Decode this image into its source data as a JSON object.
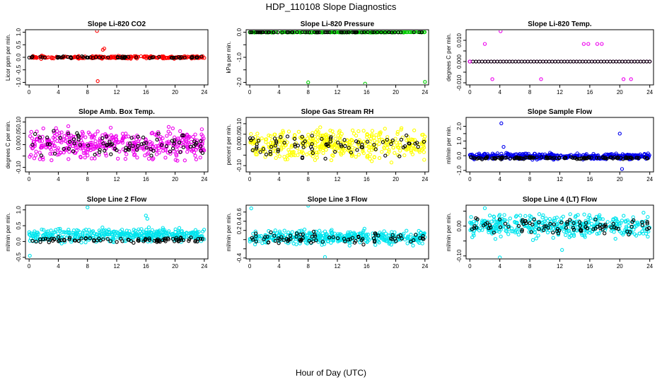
{
  "figure": {
    "title": "HDP_110108  Slope Diagnostics",
    "xlabel": "Hour of Day (UTC)"
  },
  "chart_data": [
    {
      "type": "scatter",
      "id": "co2",
      "title": "Slope Li-820 CO2",
      "ylabel": "Licor ppm per min.",
      "ylim": [
        -1.1,
        1.1
      ],
      "yticks": [
        -1.0,
        -0.5,
        0.0,
        0.5,
        1.0
      ],
      "ytick_labels": [
        "-1.0",
        "-0.5",
        "0.0",
        "0.5",
        "1.0"
      ],
      "xlim": [
        -0.5,
        24.5
      ],
      "xticks": [
        0,
        4,
        8,
        12,
        16,
        20,
        24
      ],
      "xtick_labels": [
        "0",
        "4",
        "8",
        "12",
        "16",
        "20",
        "24"
      ],
      "bulk_color": "#ff0000",
      "ref_color": "#000000",
      "series": [
        {
          "name": "all",
          "color": "#ff0000",
          "kind": "noise",
          "n": 240,
          "center": 0.0,
          "spread": 0.04,
          "seed": 11
        },
        {
          "name": "reference",
          "color": "#000000",
          "kind": "noise",
          "n": 60,
          "center": 0.0,
          "spread": 0.03,
          "seed": 12
        },
        {
          "name": "outliers",
          "color": "#ff0000",
          "kind": "points",
          "x": [
            9.3,
            9.4,
            10.1,
            10.3
          ],
          "y": [
            1.05,
            -0.95,
            0.3,
            0.35
          ]
        }
      ]
    },
    {
      "type": "scatter",
      "id": "pressure",
      "title": "Slope Li-820 Pressure",
      "ylabel": "kPa per min.",
      "ylim": [
        -2.1,
        0.1
      ],
      "yticks": [
        -2.0,
        -1.5,
        -1.0,
        -0.5,
        0.0
      ],
      "ytick_labels": [
        "-2.0",
        "",
        "-1.0",
        "",
        "0.0"
      ],
      "xlim": [
        -0.5,
        24.5
      ],
      "xticks": [
        0,
        4,
        8,
        12,
        16,
        20,
        24
      ],
      "xtick_labels": [
        "0",
        "4",
        "8",
        "12",
        "16",
        "20",
        "24"
      ],
      "bulk_color": "#00cc00",
      "ref_color": "#000000",
      "series": [
        {
          "name": "all",
          "color": "#00cc00",
          "kind": "noise",
          "n": 200,
          "center": 0.0,
          "spread": 0.01,
          "seed": 21
        },
        {
          "name": "reference",
          "color": "#000000",
          "kind": "noise",
          "n": 70,
          "center": 0.0,
          "spread": 0.005,
          "seed": 22
        },
        {
          "name": "outliers",
          "color": "#00cc00",
          "kind": "points",
          "x": [
            8.0,
            15.8,
            24.0
          ],
          "y": [
            -2.0,
            -2.05,
            -1.98
          ]
        }
      ]
    },
    {
      "type": "scatter",
      "id": "temp",
      "title": "Slope Li-820 Temp.",
      "ylabel": "degrees C per min.",
      "ylim": [
        -0.011,
        0.015
      ],
      "yticks": [
        -0.01,
        -0.005,
        0.0,
        0.005,
        0.01
      ],
      "ytick_labels": [
        "-0.010",
        "",
        "0.000",
        "",
        "0.010"
      ],
      "xlim": [
        -0.5,
        24.5
      ],
      "xticks": [
        0,
        4,
        8,
        12,
        16,
        20,
        24
      ],
      "xtick_labels": [
        "0",
        "4",
        "8",
        "12",
        "16",
        "20",
        "24"
      ],
      "bulk_color": "#ee00ee",
      "ref_color": "#000000",
      "series": [
        {
          "name": "all",
          "color": "#ee00ee",
          "kind": "line",
          "n": 60,
          "center": 0.0,
          "seed": 31
        },
        {
          "name": "reference",
          "color": "#000000",
          "kind": "line",
          "n": 60,
          "center": 0.0,
          "seed": 32
        },
        {
          "name": "outliers",
          "color": "#ee00ee",
          "kind": "points",
          "x": [
            0.0,
            2.0,
            3.0,
            4.1,
            9.5,
            15.2,
            15.8,
            17.0,
            17.6,
            20.5,
            21.5
          ],
          "y": [
            0.0,
            0.0083,
            -0.0083,
            0.0143,
            -0.0083,
            0.0083,
            0.0083,
            0.0083,
            0.0083,
            -0.0083,
            -0.0083
          ]
        }
      ]
    },
    {
      "type": "scatter",
      "id": "ambtemp",
      "title": "Slope Amb. Box Temp.",
      "ylabel": "degrees C per min.",
      "ylim": [
        -0.12,
        0.12
      ],
      "yticks": [
        -0.1,
        -0.05,
        0.0,
        0.05,
        0.1
      ],
      "ytick_labels": [
        "-0.10",
        "0.00",
        "0.05",
        "0.10"
      ],
      "ytick_labels_at": [
        -0.1,
        0.0,
        0.05,
        0.1
      ],
      "xlim": [
        -0.5,
        24.5
      ],
      "xticks": [
        0,
        4,
        8,
        12,
        16,
        20,
        24
      ],
      "xtick_labels": [
        "0",
        "4",
        "8",
        "12",
        "16",
        "20",
        "24"
      ],
      "bulk_color": "#ee00ee",
      "ref_color": "#000000",
      "series": [
        {
          "name": "all",
          "color": "#ee00ee",
          "kind": "noise",
          "n": 420,
          "center": 0.0,
          "spread": 0.05,
          "seed": 41
        },
        {
          "name": "reference",
          "color": "#000000",
          "kind": "noise",
          "n": 80,
          "center": 0.0,
          "spread": 0.04,
          "seed": 42
        }
      ]
    },
    {
      "type": "scatter",
      "id": "rh",
      "title": "Slope Gas Stream RH",
      "ylabel": "percent per min.",
      "ylim": [
        -0.13,
        0.13
      ],
      "yticks": [
        -0.1,
        -0.05,
        0.0,
        0.05,
        0.1
      ],
      "ytick_labels": [
        "-0.10",
        "0.00",
        "0.05",
        "0.10"
      ],
      "ytick_labels_at": [
        -0.1,
        0.0,
        0.05,
        0.1
      ],
      "xlim": [
        -0.5,
        24.5
      ],
      "xticks": [
        0,
        4,
        8,
        12,
        16,
        20,
        24
      ],
      "xtick_labels": [
        "0",
        "4",
        "8",
        "12",
        "16",
        "20",
        "24"
      ],
      "bulk_color": "#ffff00",
      "ref_color": "#000000",
      "series": [
        {
          "name": "all",
          "color": "#ffff00",
          "kind": "noise",
          "n": 420,
          "center": 0.0,
          "spread": 0.055,
          "seed": 51
        },
        {
          "name": "reference",
          "color": "#000000",
          "kind": "noise",
          "n": 80,
          "center": 0.0,
          "spread": 0.045,
          "seed": 52
        }
      ]
    },
    {
      "type": "scatter",
      "id": "sampleflow",
      "title": "Slope Sample Flow",
      "ylabel": "ml/min per min.",
      "ylim": [
        -1.1,
        2.6
      ],
      "yticks": [
        -1.0,
        0.0,
        0.5,
        1.0,
        1.5,
        2.0
      ],
      "ytick_labels": [
        "-1.0",
        "0.0",
        "1.0",
        "2.0"
      ],
      "ytick_labels_at": [
        -1.0,
        0.0,
        1.0,
        2.0
      ],
      "xlim": [
        -0.5,
        24.5
      ],
      "xticks": [
        0,
        4,
        8,
        12,
        16,
        20,
        24
      ],
      "xtick_labels": [
        "0",
        "4",
        "8",
        "12",
        "16",
        "20",
        "24"
      ],
      "bulk_color": "#0000ee",
      "ref_color": "#000000",
      "series": [
        {
          "name": "all",
          "color": "#0000ee",
          "kind": "noise",
          "n": 420,
          "center": -0.05,
          "spread": 0.15,
          "seed": 61
        },
        {
          "name": "reference",
          "color": "#000000",
          "kind": "noise",
          "n": 120,
          "center": -0.15,
          "spread": 0.06,
          "seed": 62
        },
        {
          "name": "outliers",
          "color": "#0000ee",
          "kind": "points",
          "x": [
            4.2,
            4.5,
            20.0,
            20.3
          ],
          "y": [
            2.2,
            0.6,
            1.5,
            -0.9
          ]
        }
      ]
    },
    {
      "type": "scatter",
      "id": "line2",
      "title": "Slope Line 2 Flow",
      "ylabel": "ml/min per min.",
      "ylim": [
        -0.55,
        1.15
      ],
      "yticks": [
        -0.5,
        0.0,
        0.5,
        1.0
      ],
      "ytick_labels": [
        "-0.5",
        "0.0",
        "0.5",
        "1.0"
      ],
      "xlim": [
        -0.5,
        24.5
      ],
      "xticks": [
        0,
        4,
        8,
        12,
        16,
        20,
        24
      ],
      "xtick_labels": [
        "0",
        "4",
        "8",
        "12",
        "16",
        "20",
        "24"
      ],
      "bulk_color": "#00e5ee",
      "ref_color": "#000000",
      "series": [
        {
          "name": "all",
          "color": "#00e5ee",
          "kind": "noise",
          "n": 420,
          "center": 0.2,
          "spread": 0.16,
          "seed": 71
        },
        {
          "name": "reference",
          "color": "#000000",
          "kind": "noise",
          "n": 90,
          "center": 0.05,
          "spread": 0.07,
          "seed": 72
        },
        {
          "name": "outliers",
          "color": "#00e5ee",
          "kind": "points",
          "x": [
            8.0,
            16.0,
            16.2,
            0.1
          ],
          "y": [
            1.08,
            0.82,
            0.72,
            -0.45
          ]
        }
      ]
    },
    {
      "type": "scatter",
      "id": "line3",
      "title": "Slope Line 3 Flow",
      "ylabel": "ml/min per min.",
      "ylim": [
        -0.42,
        0.75
      ],
      "yticks": [
        -0.4,
        -0.2,
        0.0,
        0.2,
        0.4,
        0.6
      ],
      "ytick_labels": [
        "-0.4",
        "0.2",
        "0.4",
        "0.6"
      ],
      "ytick_labels_at": [
        -0.4,
        0.2,
        0.4,
        0.6
      ],
      "xlim": [
        -0.5,
        24.5
      ],
      "xticks": [
        0,
        4,
        8,
        12,
        16,
        20,
        24
      ],
      "xtick_labels": [
        "0",
        "4",
        "8",
        "12",
        "16",
        "20",
        "24"
      ],
      "bulk_color": "#00e5ee",
      "ref_color": "#000000",
      "series": [
        {
          "name": "all",
          "color": "#00e5ee",
          "kind": "noise",
          "n": 420,
          "center": 0.05,
          "spread": 0.12,
          "seed": 81
        },
        {
          "name": "reference",
          "color": "#000000",
          "kind": "noise",
          "n": 80,
          "center": 0.03,
          "spread": 0.1,
          "seed": 82
        },
        {
          "name": "outliers",
          "color": "#00e5ee",
          "kind": "points",
          "x": [
            0.2,
            8.0,
            10.3
          ],
          "y": [
            0.68,
            0.74,
            -0.38
          ]
        }
      ]
    },
    {
      "type": "scatter",
      "id": "line4",
      "title": "Slope Line 4 (LT) Flow",
      "ylabel": "ml/min per min.",
      "ylim": [
        -0.11,
        0.07
      ],
      "yticks": [
        -0.1,
        -0.05,
        0.0,
        0.05
      ],
      "ytick_labels": [
        "-0.10",
        "0.00"
      ],
      "ytick_labels_at": [
        -0.1,
        0.0
      ],
      "xlim": [
        -0.5,
        24.5
      ],
      "xticks": [
        0,
        4,
        8,
        12,
        16,
        20,
        24
      ],
      "xtick_labels": [
        "0",
        "4",
        "8",
        "12",
        "16",
        "20",
        "24"
      ],
      "bulk_color": "#00e5ee",
      "ref_color": "#000000",
      "series": [
        {
          "name": "all",
          "color": "#00e5ee",
          "kind": "noise",
          "n": 420,
          "center": 0.0,
          "spread": 0.03,
          "seed": 91
        },
        {
          "name": "reference",
          "color": "#000000",
          "kind": "noise",
          "n": 90,
          "center": 0.0,
          "spread": 0.022,
          "seed": 92
        },
        {
          "name": "outliers",
          "color": "#00e5ee",
          "kind": "points",
          "x": [
            4.0,
            2.0,
            12.3
          ],
          "y": [
            -0.105,
            0.06,
            -0.08
          ]
        }
      ]
    }
  ]
}
